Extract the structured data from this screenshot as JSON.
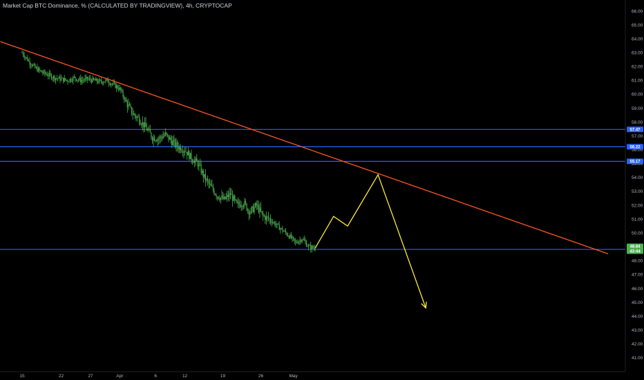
{
  "header": {
    "title": "Market Cap BTC Dominance, % (CALCULATED BY TRADINGVIEW), 4h, CRYPTOCAP"
  },
  "colors": {
    "background": "#000000",
    "candle": "#4caf50",
    "trendline": "#ff5722",
    "projection": "#ffeb3b",
    "hline": "#2962ff",
    "tag_blue": "#2962ff",
    "tag_green": "#4caf50"
  },
  "chart_data": {
    "type": "candlestick",
    "title": "Market Cap BTC Dominance, % (CALCULATED BY TRADINGVIEW), 4h, CRYPTOCAP",
    "y_range": [
      40.0,
      66.8
    ],
    "y_ticks": [
      "41.00",
      "42.00",
      "43.00",
      "44.00",
      "45.00",
      "46.00",
      "47.00",
      "48.00",
      "49.00",
      "50.00",
      "51.00",
      "52.00",
      "53.00",
      "54.00",
      "55.00",
      "56.00",
      "57.00",
      "58.00",
      "59.00",
      "60.00",
      "61.00",
      "62.00",
      "63.00",
      "64.00",
      "65.00",
      "66.00"
    ],
    "x_ticks": [
      "15",
      "22",
      "27",
      "Apr",
      "6",
      "12",
      "19",
      "26",
      "May"
    ],
    "x_tick_positions_idx": [
      0,
      36,
      63,
      90,
      123,
      150,
      185,
      220,
      250
    ],
    "price_path": [
      [
        0,
        63.0
      ],
      [
        6,
        62.4
      ],
      [
        12,
        61.9
      ],
      [
        18,
        61.6
      ],
      [
        24,
        61.4
      ],
      [
        30,
        61.2
      ],
      [
        36,
        61.1
      ],
      [
        42,
        61.0
      ],
      [
        48,
        61.2
      ],
      [
        54,
        61.0
      ],
      [
        60,
        61.1
      ],
      [
        66,
        61.0
      ],
      [
        72,
        60.9
      ],
      [
        78,
        61.0
      ],
      [
        84,
        60.7
      ],
      [
        90,
        60.4
      ],
      [
        96,
        59.4
      ],
      [
        102,
        58.6
      ],
      [
        108,
        58.2
      ],
      [
        114,
        57.6
      ],
      [
        120,
        56.9
      ],
      [
        126,
        56.8
      ],
      [
        132,
        57.1
      ],
      [
        138,
        56.6
      ],
      [
        144,
        56.2
      ],
      [
        150,
        56.0
      ],
      [
        156,
        55.4
      ],
      [
        162,
        55.0
      ],
      [
        168,
        54.0
      ],
      [
        174,
        53.3
      ],
      [
        180,
        52.7
      ],
      [
        186,
        52.4
      ],
      [
        192,
        52.8
      ],
      [
        198,
        52.0
      ],
      [
        204,
        52.2
      ],
      [
        210,
        51.5
      ],
      [
        216,
        52.0
      ],
      [
        222,
        51.2
      ],
      [
        228,
        51.0
      ],
      [
        234,
        50.6
      ],
      [
        240,
        50.2
      ],
      [
        246,
        49.8
      ],
      [
        252,
        49.3
      ],
      [
        258,
        49.6
      ],
      [
        264,
        49.0
      ],
      [
        270,
        48.9
      ]
    ],
    "horizontal_levels": [
      {
        "label": "57.47",
        "value": 57.47
      },
      {
        "label": "56.22",
        "value": 56.22
      },
      {
        "label": "55.17",
        "value": 55.17
      },
      {
        "label": "48.82",
        "value": 48.82
      }
    ],
    "current_price_tags": [
      {
        "label": "48.84",
        "value": 48.84
      },
      {
        "label": "43:44",
        "value": 48.84
      }
    ],
    "trendline": {
      "from": [
        -20,
        63.8
      ],
      "to": [
        540,
        48.5
      ]
    },
    "projection_path": [
      [
        270,
        48.9
      ],
      [
        287,
        51.2
      ],
      [
        300,
        50.5
      ],
      [
        328,
        54.2
      ],
      [
        372,
        44.6
      ]
    ]
  }
}
